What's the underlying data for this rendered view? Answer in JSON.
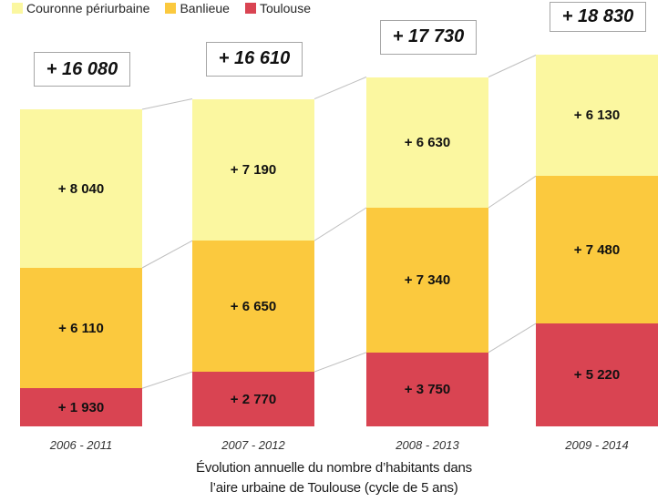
{
  "legend": {
    "items": [
      {
        "label": "Couronne périurbaine",
        "color": "#FBF7A0"
      },
      {
        "label": "Banlieue",
        "color": "#FBC93E"
      },
      {
        "label": "Toulouse",
        "color": "#D94452"
      }
    ]
  },
  "chart_data": {
    "type": "bar",
    "subtype": "stacked-column",
    "title": "Évolution annuelle du nombre d’habitants dans l’aire urbaine de Toulouse (cycle de 5 ans)",
    "caption_lines": [
      "Évolution annuelle du nombre d’habitants dans",
      "l’aire urbaine de Toulouse (cycle de 5 ans)"
    ],
    "categories": [
      "2006 - 2011",
      "2007 - 2012",
      "2008 - 2013",
      "2009 - 2014"
    ],
    "stack_order_bottom_to_top": [
      "Toulouse",
      "Banlieue",
      "Couronne périurbaine"
    ],
    "series": [
      {
        "name": "Toulouse",
        "color": "#D94452",
        "values": [
          1930,
          2770,
          3750,
          5220
        ],
        "labels": [
          "+ 1 930",
          "+ 2 770",
          "+ 3 750",
          "+ 5 220"
        ]
      },
      {
        "name": "Banlieue",
        "color": "#FBC93E",
        "values": [
          6110,
          6650,
          7340,
          7480
        ],
        "labels": [
          "+ 6 110",
          "+ 6 650",
          "+ 7 340",
          "+ 7 480"
        ]
      },
      {
        "name": "Couronne périurbaine",
        "color": "#FBF7A0",
        "values": [
          8040,
          7190,
          6630,
          6130
        ],
        "labels": [
          "+ 8 040",
          "+ 7 190",
          "+ 6 630",
          "+ 6 130"
        ]
      }
    ],
    "totals": {
      "values": [
        16080,
        16610,
        17730,
        18830
      ],
      "labels": [
        "+ 16 080",
        "+ 16 610",
        "+ 17 730",
        "+ 18 830"
      ]
    },
    "legend_position": "top-left",
    "grid": false,
    "colors": {
      "connector_line": "#BFBFBF",
      "total_box_border": "#A6A6A6",
      "text": "#1A1A1A"
    }
  }
}
